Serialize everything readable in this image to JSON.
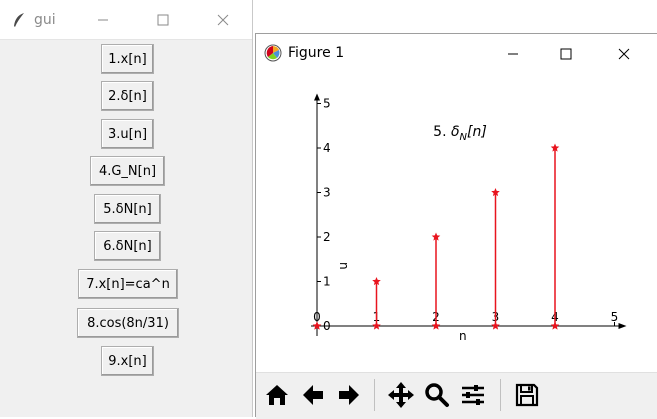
{
  "gui_window": {
    "title": "gui",
    "buttons": [
      {
        "label": "1.x[n]"
      },
      {
        "label": "2.δ[n]"
      },
      {
        "label": "3.u[n]"
      },
      {
        "label": "4.G_N[n]"
      },
      {
        "label": "5.δN[n]"
      },
      {
        "label": "6.δN[n]"
      },
      {
        "label": "7.x[n]=ca^n"
      },
      {
        "label": "8.cos(8n/31)"
      },
      {
        "label": "9.x[n]"
      }
    ]
  },
  "figure_window": {
    "title": "Figure 1",
    "toolbar": [
      {
        "name": "home-icon"
      },
      {
        "name": "back-arrow-icon"
      },
      {
        "name": "forward-arrow-icon"
      },
      {
        "name": "pan-icon"
      },
      {
        "name": "zoom-icon"
      },
      {
        "name": "configure-subplots-icon"
      },
      {
        "name": "save-icon"
      }
    ]
  },
  "chart_data": {
    "type": "stem",
    "title_prefix": "5. ",
    "title_math_base": "δ",
    "title_math_sub": "N",
    "title_math_rest": "[n]",
    "xlabel": "n",
    "ylabel": "n",
    "x": [
      0,
      1,
      2,
      3,
      4
    ],
    "y": [
      0,
      1,
      2,
      3,
      4
    ],
    "xlim": [
      0,
      5
    ],
    "ylim": [
      0,
      5
    ],
    "xticks": [
      "0",
      "1",
      "2",
      "3",
      "4",
      "5"
    ],
    "yticks": [
      "0",
      "1",
      "2",
      "3",
      "4",
      "5"
    ],
    "color": "#e8141e",
    "axis_color": "#000000"
  }
}
